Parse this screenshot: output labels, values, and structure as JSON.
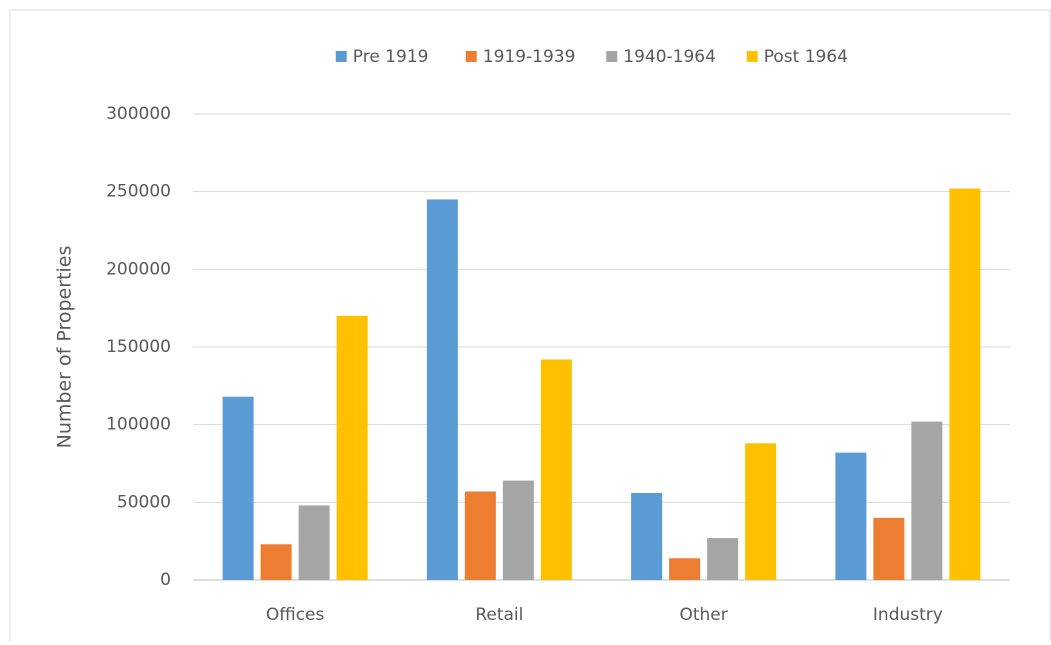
{
  "chart_data": {
    "type": "bar",
    "categories": [
      "Offices",
      "Retail",
      "Other",
      "Industry"
    ],
    "series": [
      {
        "name": "Pre 1919",
        "color": "#5b9bd5",
        "values": [
          118000,
          245000,
          56000,
          82000
        ]
      },
      {
        "name": "1919-1939",
        "color": "#ed7d31",
        "values": [
          23000,
          57000,
          14000,
          40000
        ]
      },
      {
        "name": "1940-1964",
        "color": "#a5a5a5",
        "values": [
          48000,
          64000,
          27000,
          102000
        ]
      },
      {
        "name": "Post 1964",
        "color": "#ffc000",
        "values": [
          170000,
          142000,
          88000,
          252000
        ]
      }
    ],
    "y_label": "Number of Properties",
    "ylim": [
      0,
      300000
    ],
    "yticks": [
      0,
      50000,
      100000,
      150000,
      200000,
      250000,
      300000
    ],
    "grid": true,
    "legend": "top"
  }
}
